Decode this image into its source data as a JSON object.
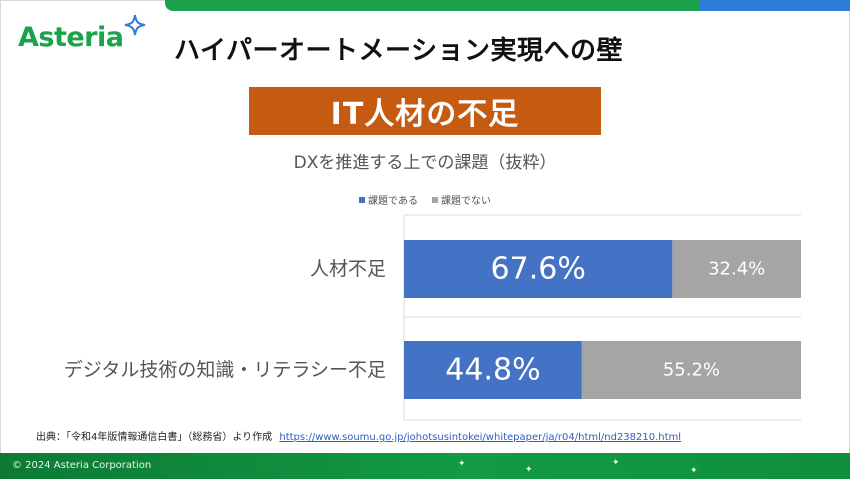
{
  "brand": {
    "logo_text": "Asteria",
    "accent_green": "#1aa34a",
    "accent_blue": "#2f7bd9",
    "logo_icon": "sparkle-star-icon"
  },
  "slide": {
    "title": "ハイパーオートメーション実現への壁",
    "banner": "IT人材の不足",
    "banner_color": "#c55a11"
  },
  "chart_data": {
    "type": "bar",
    "orientation": "horizontal",
    "stacked": true,
    "title": "DXを推進する上での課題（抜粋）",
    "categories": [
      "人材不足",
      "デジタル技術の知識・リテラシー不足"
    ],
    "series": [
      {
        "name": "課題である",
        "values": [
          67.6,
          44.8
        ],
        "labels": [
          "67.6%",
          "44.8%"
        ],
        "color": "#4472c4"
      },
      {
        "name": "課題でない",
        "values": [
          32.4,
          55.2
        ],
        "labels": [
          "32.4%",
          "55.2%"
        ],
        "color": "#a5a5a5"
      }
    ],
    "xlim": [
      0,
      100
    ],
    "legend_position": "top-center"
  },
  "source": {
    "label": "出典：「令和4年版情報通信白書」（総務省）より作成",
    "link": "https://www.soumu.go.jp/johotsusintokei/whitepaper/ja/r04/html/nd238210.html"
  },
  "footer": {
    "copyright": "© 2024 Asteria Corporation"
  }
}
